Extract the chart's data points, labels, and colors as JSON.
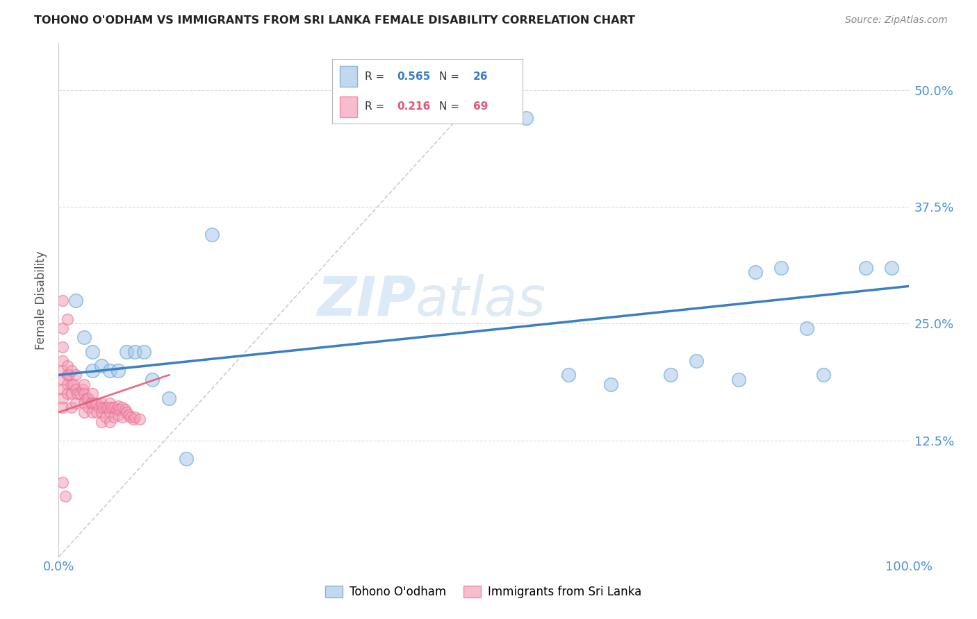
{
  "title": "TOHONO O'ODHAM VS IMMIGRANTS FROM SRI LANKA FEMALE DISABILITY CORRELATION CHART",
  "source": "Source: ZipAtlas.com",
  "ylabel": "Female Disability",
  "xlim": [
    0,
    1.0
  ],
  "ylim": [
    0,
    0.55
  ],
  "yticks": [
    0.0,
    0.125,
    0.25,
    0.375,
    0.5
  ],
  "ytick_labels": [
    "",
    "12.5%",
    "25.0%",
    "37.5%",
    "50.0%"
  ],
  "xticks": [
    0.0,
    0.25,
    0.5,
    0.75,
    1.0
  ],
  "xtick_labels": [
    "0.0%",
    "",
    "",
    "",
    "100.0%"
  ],
  "blue_R": 0.565,
  "blue_N": 26,
  "pink_R": 0.216,
  "pink_N": 69,
  "blue_color": "#a8c8e8",
  "pink_color": "#f4a0b8",
  "blue_edge_color": "#5a9fd4",
  "pink_edge_color": "#e87090",
  "blue_line_color": "#3a7fc1",
  "pink_line_color": "#e05878",
  "diagonal_color": "#c8c8c8",
  "background_color": "#ffffff",
  "grid_color": "#d8d8d8",
  "title_color": "#222222",
  "axis_label_color": "#555555",
  "tick_color": "#4a90d9",
  "blue_scatter_x": [
    0.02,
    0.03,
    0.04,
    0.04,
    0.05,
    0.06,
    0.07,
    0.08,
    0.09,
    0.1,
    0.11,
    0.13,
    0.15,
    0.18,
    0.55,
    0.6,
    0.65,
    0.72,
    0.75,
    0.8,
    0.82,
    0.85,
    0.88,
    0.9,
    0.95,
    0.98
  ],
  "blue_scatter_y": [
    0.275,
    0.235,
    0.22,
    0.2,
    0.205,
    0.2,
    0.2,
    0.22,
    0.22,
    0.22,
    0.19,
    0.17,
    0.105,
    0.345,
    0.47,
    0.195,
    0.185,
    0.195,
    0.21,
    0.19,
    0.305,
    0.31,
    0.245,
    0.195,
    0.31,
    0.31
  ],
  "pink_scatter_x": [
    0.005,
    0.005,
    0.005,
    0.005,
    0.005,
    0.005,
    0.005,
    0.005,
    0.005,
    0.005,
    0.008,
    0.01,
    0.01,
    0.01,
    0.01,
    0.01,
    0.012,
    0.015,
    0.015,
    0.015,
    0.015,
    0.018,
    0.02,
    0.02,
    0.02,
    0.022,
    0.025,
    0.028,
    0.03,
    0.03,
    0.03,
    0.03,
    0.033,
    0.035,
    0.035,
    0.038,
    0.04,
    0.04,
    0.04,
    0.042,
    0.045,
    0.045,
    0.048,
    0.05,
    0.05,
    0.05,
    0.052,
    0.055,
    0.055,
    0.058,
    0.06,
    0.06,
    0.06,
    0.062,
    0.065,
    0.065,
    0.068,
    0.07,
    0.07,
    0.072,
    0.075,
    0.075,
    0.078,
    0.08,
    0.082,
    0.085,
    0.088,
    0.09,
    0.095
  ],
  "pink_scatter_y": [
    0.275,
    0.245,
    0.225,
    0.21,
    0.2,
    0.19,
    0.18,
    0.17,
    0.16,
    0.08,
    0.065,
    0.255,
    0.205,
    0.195,
    0.185,
    0.175,
    0.195,
    0.2,
    0.185,
    0.175,
    0.16,
    0.185,
    0.195,
    0.18,
    0.165,
    0.175,
    0.175,
    0.18,
    0.185,
    0.175,
    0.165,
    0.155,
    0.17,
    0.17,
    0.16,
    0.165,
    0.175,
    0.165,
    0.155,
    0.165,
    0.165,
    0.155,
    0.16,
    0.165,
    0.155,
    0.145,
    0.16,
    0.16,
    0.15,
    0.16,
    0.165,
    0.155,
    0.145,
    0.16,
    0.16,
    0.15,
    0.158,
    0.162,
    0.152,
    0.158,
    0.16,
    0.15,
    0.158,
    0.155,
    0.152,
    0.15,
    0.148,
    0.15,
    0.148
  ],
  "legend_label_blue": "Tohono O'odham",
  "legend_label_pink": "Immigrants from Sri Lanka",
  "watermark_zip": "ZIP",
  "watermark_atlas": "atlas"
}
